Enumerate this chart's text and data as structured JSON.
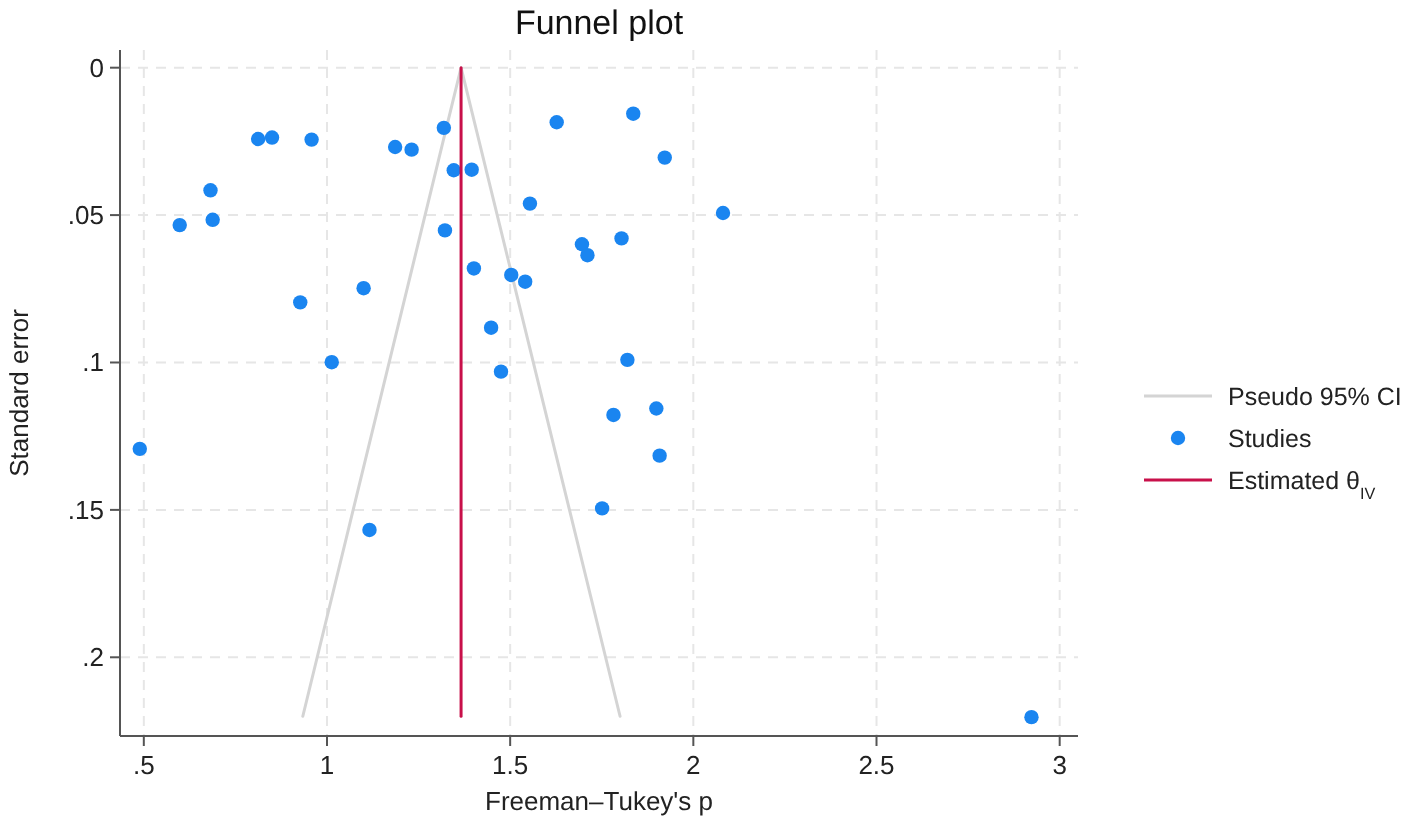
{
  "chart_data": {
    "type": "scatter",
    "title": "Funnel plot",
    "xlabel": "Freeman–Tukey's p",
    "ylabel": "Standard error",
    "xlim": [
      0.435,
      3.05
    ],
    "ylim": [
      0.2267,
      -0.006
    ],
    "xticks": [
      {
        "value": 0.5,
        "label": ".5"
      },
      1,
      1.5,
      2,
      2.5,
      3
    ],
    "yticks": [
      0,
      {
        "value": 0.05,
        "label": ".05"
      },
      {
        "value": 0.1,
        "label": ".1"
      },
      {
        "value": 0.15,
        "label": ".15"
      },
      {
        "value": 0.2,
        "label": ".2"
      }
    ],
    "grid": true,
    "legend": "right",
    "series": [
      {
        "name": "Pseudo 95% CI",
        "type": "line",
        "color": "#d4d4d4",
        "line_style": "solid",
        "marker": "none",
        "x": [
          0.934,
          1.366,
          1.8
        ],
        "values": [
          0.22,
          0,
          0.22
        ]
      },
      {
        "name": "Studies",
        "color": "#1a85f0",
        "marker": "circle",
        "x": [
          0.598,
          0.682,
          0.688,
          0.812,
          0.85,
          0.958,
          0.927,
          1.1,
          1.013,
          1.186,
          1.231,
          1.319,
          1.346,
          1.395,
          1.322,
          1.401,
          1.554,
          1.503,
          1.541,
          1.448,
          1.475,
          1.627,
          1.836,
          1.696,
          1.711,
          1.804,
          1.82,
          1.782,
          1.922,
          2.081,
          1.899,
          0.489,
          1.116,
          1.908,
          1.751,
          2.923
        ],
        "values": [
          0.0534,
          0.0416,
          0.0516,
          0.0242,
          0.0237,
          0.0244,
          0.0796,
          0.0748,
          0.0999,
          0.0269,
          0.0278,
          0.0204,
          0.0348,
          0.0346,
          0.0552,
          0.0681,
          0.0461,
          0.0703,
          0.0726,
          0.0882,
          0.1031,
          0.0185,
          0.0156,
          0.0599,
          0.0636,
          0.0579,
          0.0991,
          0.1178,
          0.0305,
          0.0493,
          0.1156,
          0.1293,
          0.1568,
          0.1316,
          0.1495,
          0.2203
        ]
      },
      {
        "name": "Estimated θ$_{IV}$",
        "type": "line",
        "color": "#c8104a",
        "line_style": "solid",
        "marker": "none",
        "x": [
          1.366,
          1.366
        ],
        "values": [
          0,
          0.22
        ]
      }
    ]
  }
}
